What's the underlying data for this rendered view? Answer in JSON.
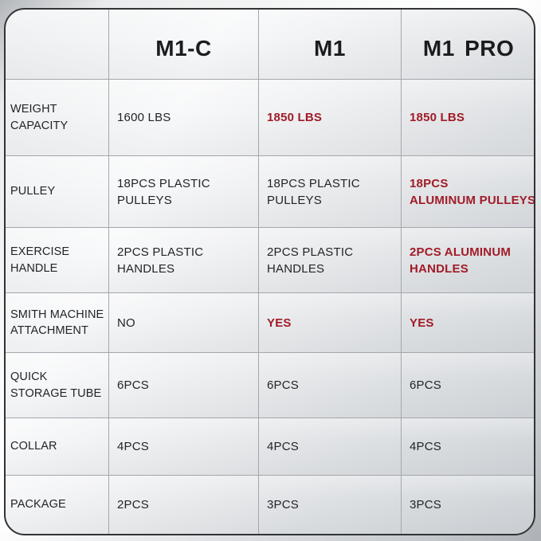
{
  "colors": {
    "accent_red": "#A01B27",
    "text_dark": "#232426",
    "header_text": "#1b1c1e",
    "grid_line": "#a4a7ab",
    "card_border": "#313335"
  },
  "table": {
    "columns": [
      "M1-C",
      "M1",
      "M1 PRO"
    ],
    "rows": [
      {
        "label": "WEIGHT\nCAPACITY",
        "values": [
          {
            "text": "1600 LBS",
            "highlight": false
          },
          {
            "text": "1850 LBS",
            "highlight": true
          },
          {
            "text": "1850 LBS",
            "highlight": true
          }
        ]
      },
      {
        "label": "PULLEY",
        "values": [
          {
            "text": "18PCS PLASTIC\nPULLEYS",
            "highlight": false
          },
          {
            "text": "18PCS PLASTIC\nPULLEYS",
            "highlight": false
          },
          {
            "text": "18PCS\nALUMINUM PULLEYS",
            "highlight": true
          }
        ]
      },
      {
        "label": "EXERCISE\nHANDLE",
        "values": [
          {
            "text": "2PCS PLASTIC\nHANDLES",
            "highlight": false
          },
          {
            "text": "2PCS PLASTIC\nHANDLES",
            "highlight": false
          },
          {
            "text": "2PCS ALUMINUM\nHANDLES",
            "highlight": true
          }
        ]
      },
      {
        "label": "SMITH MACHINE\nATTACHMENT",
        "values": [
          {
            "text": "NO",
            "highlight": false
          },
          {
            "text": "YES",
            "highlight": true
          },
          {
            "text": "YES",
            "highlight": true
          }
        ]
      },
      {
        "label": "QUICK\nSTORAGE TUBE",
        "values": [
          {
            "text": "6PCS",
            "highlight": false
          },
          {
            "text": "6PCS",
            "highlight": false
          },
          {
            "text": "6PCS",
            "highlight": false
          }
        ]
      },
      {
        "label": "COLLAR",
        "values": [
          {
            "text": "4PCS",
            "highlight": false
          },
          {
            "text": "4PCS",
            "highlight": false
          },
          {
            "text": "4PCS",
            "highlight": false
          }
        ]
      },
      {
        "label": "PACKAGE",
        "values": [
          {
            "text": "2PCS",
            "highlight": false
          },
          {
            "text": "3PCS",
            "highlight": false
          },
          {
            "text": "3PCS",
            "highlight": false
          }
        ]
      }
    ]
  }
}
